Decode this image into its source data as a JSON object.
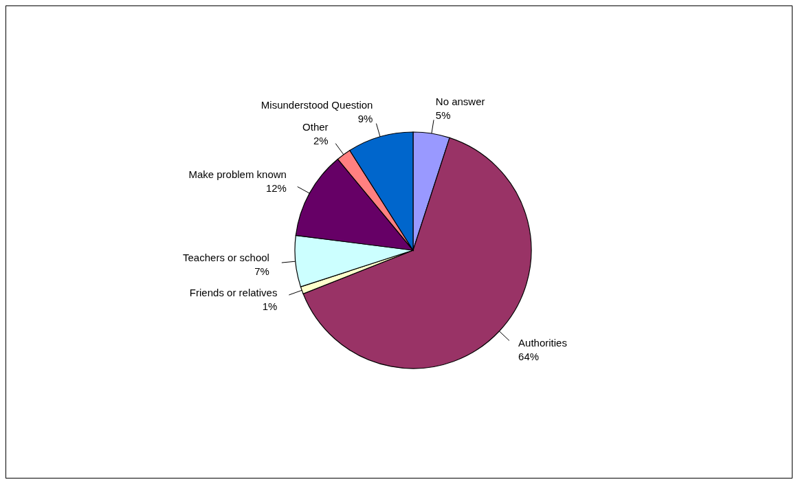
{
  "chart_data": {
    "type": "pie",
    "categories": [
      "No answer",
      "Authorities",
      "Friends or relatives",
      "Teachers or school",
      "Make problem known",
      "Other",
      "Misunderstood Question"
    ],
    "values": [
      5,
      64,
      1,
      7,
      12,
      2,
      9
    ],
    "value_labels": [
      "5%",
      "64%",
      "1%",
      "7%",
      "12%",
      "2%",
      "9%"
    ],
    "colors": [
      "#9999ff",
      "#993366",
      "#ffffcc",
      "#ccffff",
      "#660066",
      "#ff8080",
      "#0066cc"
    ],
    "legend": false
  }
}
